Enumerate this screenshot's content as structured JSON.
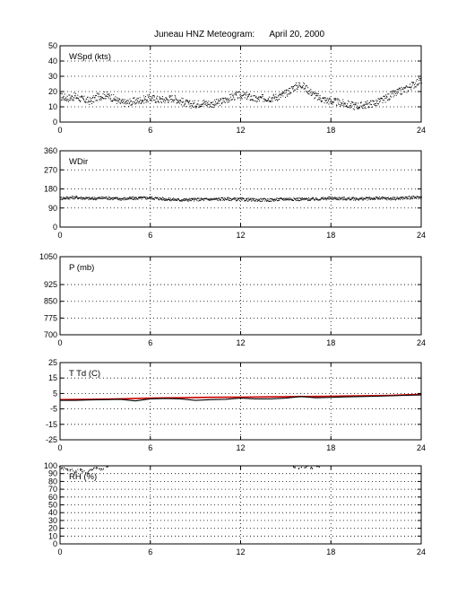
{
  "title": "Juneau HNZ Meteogram:      April 20, 2000",
  "chart_data": [
    {
      "type": "scatter",
      "label": "WSpd (kts)",
      "xlim": [
        0,
        24
      ],
      "ylim": [
        0,
        50
      ],
      "xticks": [
        0,
        6,
        12,
        18,
        24
      ],
      "yticks": [
        0,
        10,
        20,
        30,
        40,
        50
      ],
      "grid": true,
      "series": [
        {
          "color": "#000000",
          "x": [
            0,
            0.5,
            1,
            1.5,
            2,
            2.5,
            3,
            3.5,
            4,
            4.5,
            5,
            5.5,
            6,
            6.5,
            7,
            7.5,
            8,
            8.5,
            9,
            9.5,
            10,
            10.5,
            11,
            11.5,
            12,
            12.5,
            13,
            13.5,
            14,
            14.5,
            15,
            15.5,
            16,
            16.5,
            17,
            17.5,
            18,
            18.5,
            19,
            19.5,
            20,
            20.5,
            21,
            21.5,
            22,
            22.5,
            23,
            23.5,
            24
          ],
          "y": [
            17,
            16,
            17,
            15,
            14,
            17,
            18,
            16,
            13,
            13,
            14,
            15,
            16,
            15,
            15,
            16,
            14,
            12,
            12,
            13,
            12,
            13,
            15,
            17,
            18,
            17,
            15,
            16,
            16,
            17,
            19,
            23,
            25,
            21,
            17,
            15,
            14,
            13,
            12,
            11,
            11,
            12,
            13,
            15,
            18,
            20,
            22,
            25,
            28
          ]
        }
      ]
    },
    {
      "type": "scatter",
      "label": "WDir",
      "xlim": [
        0,
        24
      ],
      "ylim": [
        0,
        360
      ],
      "xticks": [
        0,
        6,
        12,
        18,
        24
      ],
      "yticks": [
        0,
        90,
        180,
        270,
        360
      ],
      "grid": true,
      "series": [
        {
          "color": "#000000",
          "x": [
            0,
            1,
            2,
            3,
            4,
            5,
            6,
            7,
            8,
            9,
            10,
            11,
            12,
            13,
            14,
            15,
            16,
            17,
            18,
            19,
            20,
            21,
            22,
            23,
            24
          ],
          "y": [
            138,
            142,
            136,
            140,
            135,
            138,
            140,
            134,
            130,
            132,
            133,
            135,
            132,
            130,
            130,
            135,
            133,
            134,
            138,
            136,
            135,
            138,
            136,
            140,
            142
          ]
        }
      ]
    },
    {
      "type": "line",
      "label": "P (mb)",
      "xlim": [
        0,
        24
      ],
      "ylim": [
        700,
        1050
      ],
      "xticks": [
        0,
        6,
        12,
        18,
        24
      ],
      "yticks": [
        700,
        775,
        850,
        925,
        1050
      ],
      "grid": true,
      "series": []
    },
    {
      "type": "line",
      "label": "T Td (C)",
      "xlim": [
        0,
        24
      ],
      "ylim": [
        -25,
        25
      ],
      "xticks": [
        0,
        6,
        12,
        18,
        24
      ],
      "yticks": [
        -25,
        -15,
        -5,
        5,
        15,
        25
      ],
      "grid": true,
      "series": [
        {
          "color": "#cc0000",
          "x": [
            0,
            2,
            4,
            6,
            8,
            10,
            12,
            14,
            16,
            18,
            20,
            22,
            24
          ],
          "y": [
            1,
            1.2,
            1.5,
            2,
            2.2,
            2.5,
            2.6,
            2.8,
            3,
            3.2,
            3.5,
            3.8,
            4.5
          ]
        },
        {
          "color": "#000000",
          "x": [
            0,
            1,
            2,
            3,
            4,
            5,
            6,
            7,
            8,
            9,
            10,
            11,
            12,
            13,
            14,
            15,
            16,
            17,
            18,
            19,
            20,
            21,
            22,
            23,
            24
          ],
          "y": [
            0.5,
            0.5,
            0.8,
            1,
            1.2,
            0.2,
            1.5,
            1.8,
            1.5,
            0.5,
            1,
            1.2,
            2,
            1.5,
            1.5,
            2,
            3,
            2.2,
            2.5,
            2.8,
            3,
            3.2,
            3.5,
            3.8,
            4
          ]
        }
      ]
    },
    {
      "type": "scatter",
      "label": "RH (%)",
      "xlim": [
        0,
        24
      ],
      "ylim": [
        0,
        100
      ],
      "xticks": [
        0,
        6,
        12,
        18,
        24
      ],
      "yticks": [
        0,
        10,
        20,
        30,
        40,
        50,
        60,
        70,
        80,
        90,
        100
      ],
      "grid": true,
      "series": [
        {
          "color": "#000000",
          "x": [
            0,
            0.25,
            0.5,
            0.75,
            1,
            1.25,
            1.5,
            1.75,
            2,
            2.25,
            2.5,
            2.75,
            3.1,
            15.5,
            15.9,
            16.3,
            16.7,
            17.1
          ],
          "y": [
            98,
            97,
            96,
            95,
            93,
            96,
            94,
            92,
            95,
            97,
            98,
            96,
            100,
            99,
            98,
            99,
            98,
            99
          ]
        }
      ]
    }
  ]
}
